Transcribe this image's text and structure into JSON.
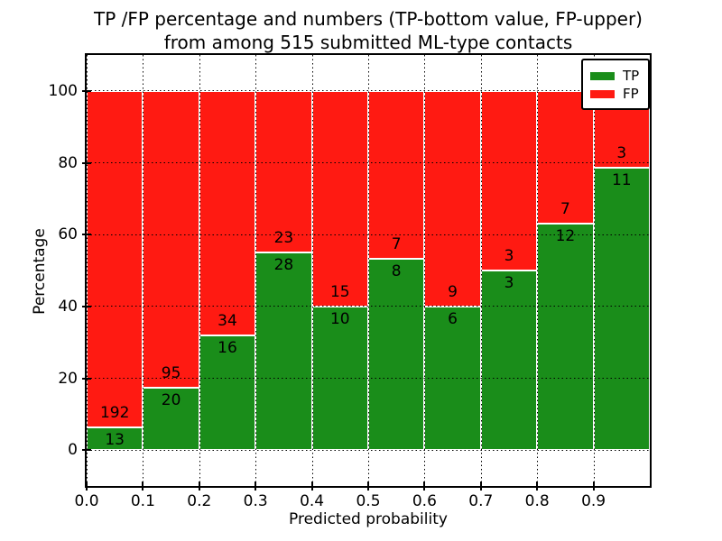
{
  "chart_data": {
    "type": "bar",
    "stacked": true,
    "normalized_to_percent": true,
    "title": "TP /FP percentage and numbers (TP-bottom value, FP-upper)",
    "subtitle": "from among 515 submitted ML-type contacts",
    "xlabel": "Predicted probability",
    "ylabel": "Percentage",
    "total_contacts": 515,
    "bin_width": 0.1,
    "categories": [
      "0.0-0.1",
      "0.1-0.2",
      "0.2-0.3",
      "0.3-0.4",
      "0.4-0.5",
      "0.5-0.6",
      "0.6-0.7",
      "0.7-0.8",
      "0.8-0.9",
      "0.9-1.0"
    ],
    "bin_starts": [
      0.0,
      0.1,
      0.2,
      0.3,
      0.4,
      0.5,
      0.6,
      0.7,
      0.8,
      0.9
    ],
    "series": [
      {
        "name": "TP",
        "color": "#1a8d1a",
        "counts": [
          13,
          20,
          16,
          28,
          10,
          8,
          6,
          3,
          12,
          11
        ],
        "percent": [
          6.34,
          17.39,
          32.0,
          54.9,
          40.0,
          53.33,
          40.0,
          50.0,
          63.16,
          78.57
        ]
      },
      {
        "name": "FP",
        "color": "#ff1a12",
        "counts": [
          192,
          95,
          34,
          23,
          15,
          7,
          9,
          3,
          7,
          3
        ],
        "percent": [
          93.66,
          82.61,
          68.0,
          45.1,
          60.0,
          46.67,
          60.0,
          50.0,
          36.84,
          21.43
        ]
      }
    ],
    "annotation_note": "FP count printed above TP/FP boundary, TP count below it",
    "xlim": [
      0.0,
      1.0
    ],
    "ylim": [
      -10,
      110
    ],
    "xticks": [
      "0.0",
      "0.1",
      "0.2",
      "0.3",
      "0.4",
      "0.5",
      "0.6",
      "0.7",
      "0.8",
      "0.9"
    ],
    "yticks": [
      0,
      20,
      40,
      60,
      80,
      100
    ],
    "grid": "dotted",
    "legend_position": "upper right"
  }
}
